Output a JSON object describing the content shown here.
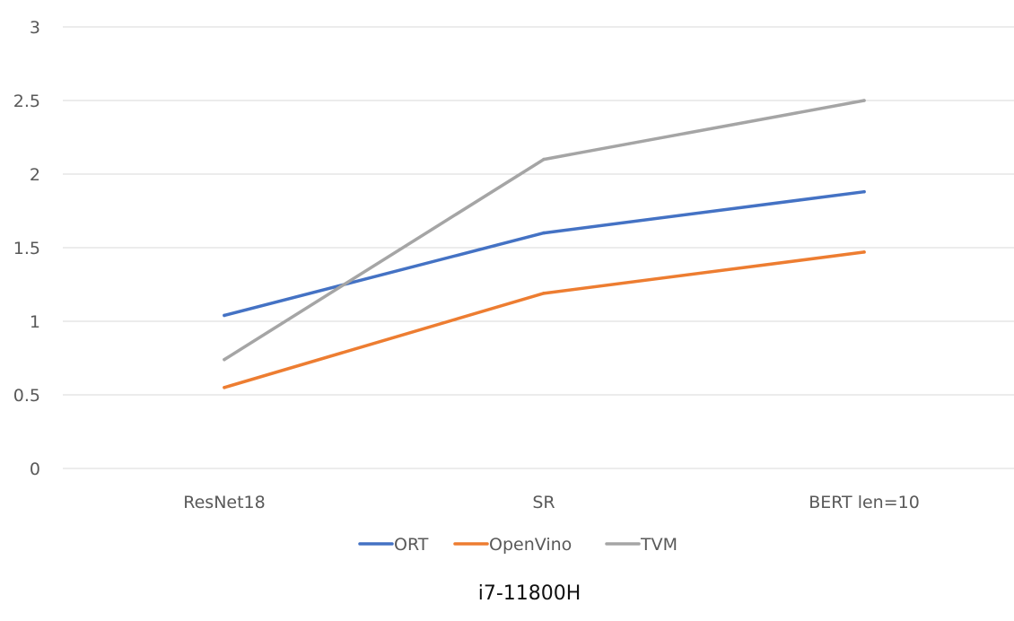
{
  "chart_data": {
    "type": "line",
    "title": "",
    "xlabel": "",
    "ylabel": "",
    "categories": [
      "ResNet18",
      "SR",
      "BERT len=10"
    ],
    "ylim": [
      0,
      3
    ],
    "yticks": [
      "0",
      "0.5",
      "1",
      "1.5",
      "2",
      "2.5",
      "3"
    ],
    "grid": true,
    "legend_position": "bottom",
    "series": [
      {
        "name": "ORT",
        "color": "#4472C4",
        "values": [
          1.04,
          1.6,
          1.88
        ]
      },
      {
        "name": "OpenVino",
        "color": "#ED7D31",
        "values": [
          0.55,
          1.19,
          1.47
        ]
      },
      {
        "name": "TVM",
        "color": "#A5A5A5",
        "values": [
          0.74,
          2.1,
          2.5
        ]
      }
    ],
    "caption": "i7-11800H"
  }
}
